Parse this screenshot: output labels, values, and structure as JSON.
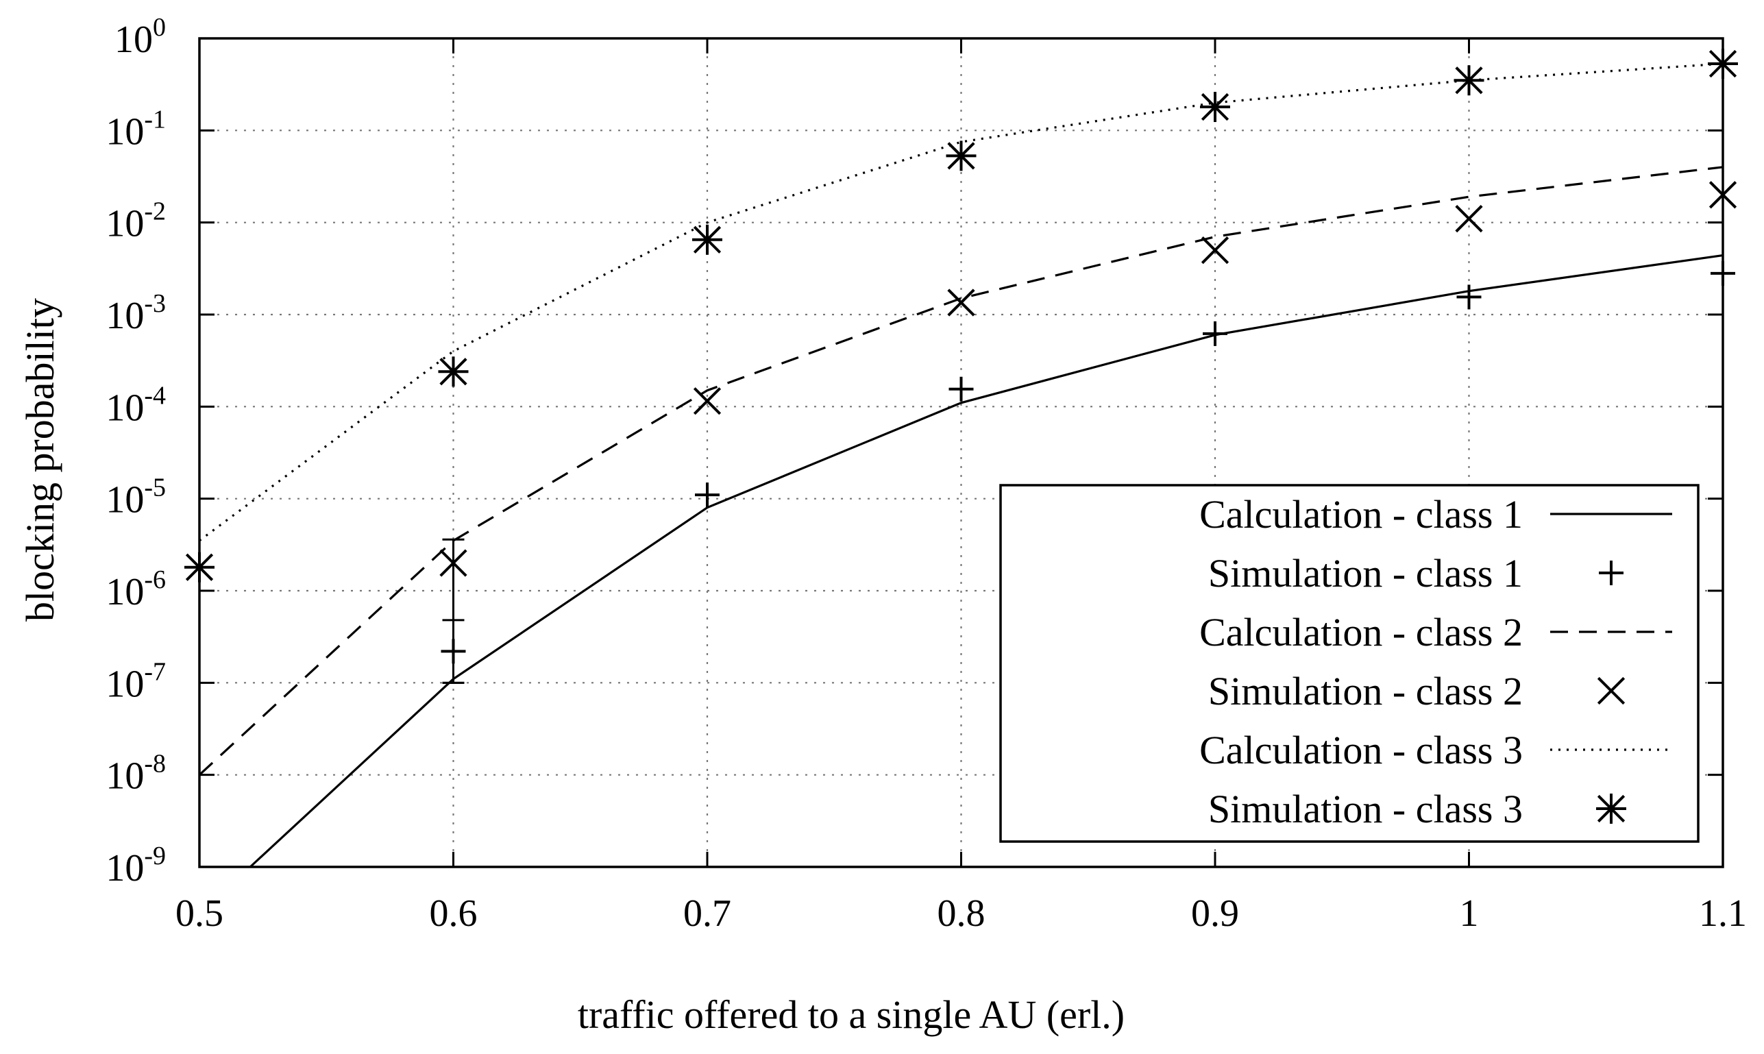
{
  "chart_data": {
    "type": "line",
    "title": "",
    "xlabel": "traffic offered to a single AU (erl.)",
    "ylabel": "blocking probability",
    "xlim": [
      0.5,
      1.1
    ],
    "ylim": [
      1e-09,
      1
    ],
    "yscale": "log",
    "grid": true,
    "legend_position": "bottom-right",
    "x_ticks": [
      {
        "value": 0.5,
        "label": "0.5"
      },
      {
        "value": 0.6,
        "label": "0.6"
      },
      {
        "value": 0.7,
        "label": "0.7"
      },
      {
        "value": 0.8,
        "label": "0.8"
      },
      {
        "value": 0.9,
        "label": "0.9"
      },
      {
        "value": 1.0,
        "label": "1"
      },
      {
        "value": 1.1,
        "label": "1.1"
      }
    ],
    "y_ticks": [
      {
        "value": 1,
        "base": "10",
        "exp": "0"
      },
      {
        "value": 0.1,
        "base": "10",
        "exp": "-1"
      },
      {
        "value": 0.01,
        "base": "10",
        "exp": "-2"
      },
      {
        "value": 0.001,
        "base": "10",
        "exp": "-3"
      },
      {
        "value": 0.0001,
        "base": "10",
        "exp": "-4"
      },
      {
        "value": 1e-05,
        "base": "10",
        "exp": "-5"
      },
      {
        "value": 1e-06,
        "base": "10",
        "exp": "-6"
      },
      {
        "value": 1e-07,
        "base": "10",
        "exp": "-7"
      },
      {
        "value": 1e-08,
        "base": "10",
        "exp": "-8"
      },
      {
        "value": 1e-09,
        "base": "10",
        "exp": "-9"
      }
    ],
    "series": [
      {
        "name": "Calculation - class 1",
        "kind": "line",
        "dash": "solid",
        "x": [
          0.52,
          0.6,
          0.7,
          0.8,
          0.9,
          1.0,
          1.1
        ],
        "y": [
          1e-09,
          1.1e-07,
          8e-06,
          0.00011,
          0.0006,
          0.0018,
          0.0044
        ]
      },
      {
        "name": "Simulation - class 1",
        "kind": "marker",
        "marker": "plus",
        "x": [
          0.6,
          0.7,
          0.8,
          0.9,
          1.0,
          1.1
        ],
        "y": [
          2.2e-07,
          1.1e-05,
          0.000155,
          0.00062,
          0.00155,
          0.0028
        ],
        "error_low": [
          1e-07,
          null,
          null,
          null,
          null,
          null
        ],
        "error_high": [
          4.8e-07,
          null,
          null,
          null,
          null,
          null
        ]
      },
      {
        "name": "Calculation - class 2",
        "kind": "line",
        "dash": "dashed",
        "x": [
          0.5,
          0.6,
          0.7,
          0.8,
          0.9,
          1.0,
          1.1
        ],
        "y": [
          1e-08,
          3.5e-06,
          0.00015,
          0.0015,
          0.007,
          0.019,
          0.04
        ]
      },
      {
        "name": "Simulation - class 2",
        "kind": "marker",
        "marker": "x",
        "x": [
          0.6,
          0.7,
          0.8,
          0.9,
          1.0,
          1.1
        ],
        "y": [
          2e-06,
          0.000115,
          0.00135,
          0.005,
          0.011,
          0.02
        ],
        "error_low": [
          1e-07,
          null,
          null,
          null,
          null,
          null
        ],
        "error_high": [
          3.6e-06,
          null,
          null,
          null,
          null,
          null
        ]
      },
      {
        "name": "Calculation - class 3",
        "kind": "line",
        "dash": "dotted",
        "x": [
          0.5,
          0.6,
          0.7,
          0.8,
          0.9,
          1.0,
          1.1
        ],
        "y": [
          3.5e-06,
          0.0004,
          0.01,
          0.075,
          0.2,
          0.35,
          0.53
        ]
      },
      {
        "name": "Simulation - class 3",
        "kind": "marker",
        "marker": "star",
        "x": [
          0.5,
          0.6,
          0.7,
          0.8,
          0.9,
          1.0,
          1.1
        ],
        "y": [
          1.8e-06,
          0.00024,
          0.0065,
          0.053,
          0.18,
          0.35,
          0.53
        ]
      }
    ]
  }
}
